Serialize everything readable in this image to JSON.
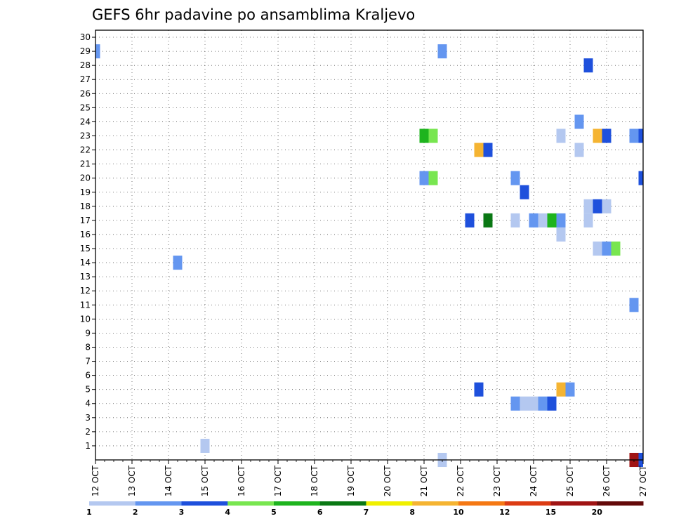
{
  "chart_data": {
    "type": "heatmap",
    "title": "GEFS 6hr padavine po ansamblima Kraljevo",
    "x_tick_labels": [
      "12 OCT",
      "13 OCT",
      "14 OCT",
      "15 OCT",
      "16 OCT",
      "17 OCT",
      "18 OCT",
      "19 OCT",
      "20 OCT",
      "21 OCT",
      "22 OCT",
      "23 OCT",
      "24 OCT",
      "25 OCT",
      "26 OCT",
      "27 OCT"
    ],
    "y_tick_labels": [
      "1",
      "2",
      "3",
      "4",
      "5",
      "6",
      "7",
      "8",
      "9",
      "10",
      "11",
      "12",
      "13",
      "14",
      "15",
      "16",
      "17",
      "18",
      "19",
      "20",
      "21",
      "22",
      "23",
      "24",
      "25",
      "26",
      "27",
      "28",
      "29",
      "30"
    ],
    "x_range": [
      "12 OCT 00Z",
      "27 OCT 00Z"
    ],
    "y_range": [
      0,
      30
    ],
    "grid": "dotted",
    "colorbar": {
      "levels": [
        "1",
        "2",
        "3",
        "4",
        "5",
        "6",
        "7",
        "8",
        "10",
        "12",
        "15",
        "20"
      ],
      "colors": [
        "#b4c8f0",
        "#6496f0",
        "#1e50dc",
        "#78e650",
        "#1eb41e",
        "#0a7814",
        "#f0f000",
        "#f5b432",
        "#f57814",
        "#dc3c14",
        "#a01414",
        "#640a0a"
      ]
    },
    "cells": [
      {
        "day": "12 OCT",
        "hour": "00Z",
        "member": 30,
        "color": "#6496f0"
      },
      {
        "day": "21 OCT",
        "hour": "12Z",
        "member": 30,
        "color": "#6496f0"
      },
      {
        "day": "25 OCT",
        "hour": "12Z",
        "member": 29,
        "color": "#1e50dc"
      },
      {
        "day": "25 OCT",
        "hour": "06Z",
        "member": 25,
        "color": "#6496f0"
      },
      {
        "day": "21 OCT",
        "hour": "00Z",
        "member": 24,
        "color": "#1eb41e"
      },
      {
        "day": "21 OCT",
        "hour": "06Z",
        "member": 24,
        "color": "#78e650"
      },
      {
        "day": "24 OCT",
        "hour": "18Z",
        "member": 24,
        "color": "#b4c8f0"
      },
      {
        "day": "25 OCT",
        "hour": "18Z",
        "member": 24,
        "color": "#f5b432"
      },
      {
        "day": "26 OCT",
        "hour": "00Z",
        "member": 24,
        "color": "#1e50dc"
      },
      {
        "day": "26 OCT",
        "hour": "18Z",
        "member": 24,
        "color": "#6496f0"
      },
      {
        "day": "27 OCT",
        "hour": "00Z",
        "member": 24,
        "color": "#1e50dc"
      },
      {
        "day": "22 OCT",
        "hour": "12Z",
        "member": 23,
        "color": "#f5b432"
      },
      {
        "day": "22 OCT",
        "hour": "18Z",
        "member": 23,
        "color": "#1e50dc"
      },
      {
        "day": "25 OCT",
        "hour": "06Z",
        "member": 23,
        "color": "#b4c8f0"
      },
      {
        "day": "21 OCT",
        "hour": "00Z",
        "member": 21,
        "color": "#6496f0"
      },
      {
        "day": "21 OCT",
        "hour": "06Z",
        "member": 21,
        "color": "#78e650"
      },
      {
        "day": "23 OCT",
        "hour": "12Z",
        "member": 21,
        "color": "#6496f0"
      },
      {
        "day": "27 OCT",
        "hour": "00Z",
        "member": 21,
        "color": "#1e50dc"
      },
      {
        "day": "23 OCT",
        "hour": "18Z",
        "member": 20,
        "color": "#1e50dc"
      },
      {
        "day": "25 OCT",
        "hour": "12Z",
        "member": 19,
        "color": "#b4c8f0"
      },
      {
        "day": "25 OCT",
        "hour": "18Z",
        "member": 19,
        "color": "#1e50dc"
      },
      {
        "day": "26 OCT",
        "hour": "00Z",
        "member": 19,
        "color": "#b4c8f0"
      },
      {
        "day": "22 OCT",
        "hour": "06Z",
        "member": 18,
        "color": "#1e50dc"
      },
      {
        "day": "22 OCT",
        "hour": "18Z",
        "member": 18,
        "color": "#0a7814"
      },
      {
        "day": "23 OCT",
        "hour": "12Z",
        "member": 18,
        "color": "#b4c8f0"
      },
      {
        "day": "24 OCT",
        "hour": "00Z",
        "member": 18,
        "color": "#6496f0"
      },
      {
        "day": "24 OCT",
        "hour": "06Z",
        "member": 18,
        "color": "#b4c8f0"
      },
      {
        "day": "24 OCT",
        "hour": "12Z",
        "member": 18,
        "color": "#1eb41e"
      },
      {
        "day": "24 OCT",
        "hour": "18Z",
        "member": 18,
        "color": "#6496f0"
      },
      {
        "day": "25 OCT",
        "hour": "12Z",
        "member": 18,
        "color": "#b4c8f0"
      },
      {
        "day": "24 OCT",
        "hour": "18Z",
        "member": 17,
        "color": "#b4c8f0"
      },
      {
        "day": "25 OCT",
        "hour": "18Z",
        "member": 16,
        "color": "#b4c8f0"
      },
      {
        "day": "26 OCT",
        "hour": "00Z",
        "member": 16,
        "color": "#6496f0"
      },
      {
        "day": "26 OCT",
        "hour": "06Z",
        "member": 16,
        "color": "#78e650"
      },
      {
        "day": "14 OCT",
        "hour": "06Z",
        "member": 15,
        "color": "#6496f0"
      },
      {
        "day": "26 OCT",
        "hour": "18Z",
        "member": 12,
        "color": "#6496f0"
      },
      {
        "day": "22 OCT",
        "hour": "12Z",
        "member": 6,
        "color": "#1e50dc"
      },
      {
        "day": "24 OCT",
        "hour": "18Z",
        "member": 6,
        "color": "#f5b432"
      },
      {
        "day": "25 OCT",
        "hour": "00Z",
        "member": 6,
        "color": "#6496f0"
      },
      {
        "day": "23 OCT",
        "hour": "12Z",
        "member": 5,
        "color": "#6496f0"
      },
      {
        "day": "23 OCT",
        "hour": "18Z",
        "member": 5,
        "color": "#b4c8f0"
      },
      {
        "day": "24 OCT",
        "hour": "00Z",
        "member": 5,
        "color": "#b4c8f0"
      },
      {
        "day": "24 OCT",
        "hour": "06Z",
        "member": 5,
        "color": "#6496f0"
      },
      {
        "day": "24 OCT",
        "hour": "12Z",
        "member": 5,
        "color": "#1e50dc"
      },
      {
        "day": "15 OCT",
        "hour": "00Z",
        "member": 2,
        "color": "#b4c8f0"
      },
      {
        "day": "21 OCT",
        "hour": "12Z",
        "member": 1,
        "color": "#b4c8f0"
      },
      {
        "day": "26 OCT",
        "hour": "18Z",
        "member": 1,
        "color": "#a01414"
      },
      {
        "day": "27 OCT",
        "hour": "00Z",
        "member": 1,
        "color": "#1e50dc"
      }
    ]
  }
}
